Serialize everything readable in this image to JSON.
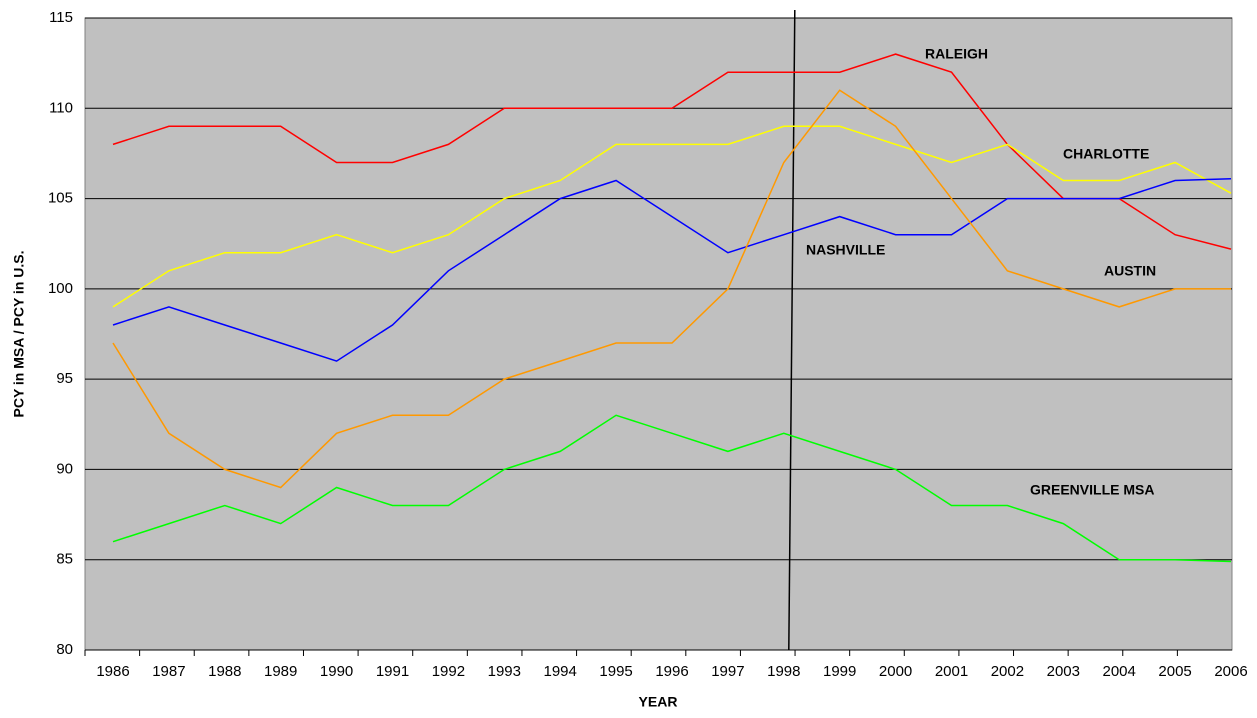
{
  "chart_data": {
    "type": "line",
    "y_label": "PCY in MSA / PCY in U.S.",
    "x_label": "YEAR",
    "categories": [
      "1986",
      "1987",
      "1988",
      "1989",
      "1990",
      "1991",
      "1992",
      "1993",
      "1994",
      "1995",
      "1996",
      "1997",
      "1998",
      "1999",
      "2000",
      "2001",
      "2002",
      "2003",
      "2004",
      "2005",
      "2006"
    ],
    "series": [
      {
        "name": "RALEIGH",
        "color": "#ff0000",
        "values": [
          108,
          109,
          109,
          109,
          107,
          107,
          108,
          110,
          110,
          110,
          110,
          112,
          112,
          112,
          113,
          112,
          108,
          105,
          105,
          103,
          102.2
        ]
      },
      {
        "name": "CHARLOTTE",
        "color": "#ffff00",
        "values": [
          99,
          101,
          102,
          102,
          103,
          102,
          103,
          105,
          106,
          108,
          108,
          108,
          109,
          109,
          108,
          107,
          108,
          106,
          106,
          107,
          105.3
        ]
      },
      {
        "name": "NASHVILLE",
        "color": "#0000ff",
        "values": [
          98,
          99,
          98,
          97,
          96,
          98,
          101,
          103,
          105,
          106,
          104,
          102,
          103,
          104,
          103,
          103,
          105,
          105,
          105,
          106,
          106.1
        ]
      },
      {
        "name": "AUSTIN",
        "color": "#ff9900",
        "values": [
          97,
          92,
          90,
          89,
          92,
          93,
          93,
          95,
          96,
          97,
          97,
          100,
          107,
          111,
          109,
          105,
          101,
          100,
          99,
          100,
          100
        ]
      },
      {
        "name": "GREENVILLE MSA",
        "color": "#00ff00",
        "values": [
          86,
          87,
          88,
          87,
          89,
          88,
          88,
          90,
          91,
          93,
          92,
          91,
          92,
          91,
          90,
          88,
          88,
          87,
          85,
          85,
          84.9
        ]
      }
    ],
    "reference_category": "1998",
    "ylim": [
      80,
      115
    ],
    "yticks": [
      80,
      85,
      90,
      95,
      100,
      105,
      110,
      115
    ],
    "grid": true,
    "background": "#c0c0c0"
  }
}
